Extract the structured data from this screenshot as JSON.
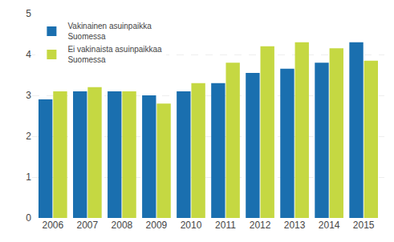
{
  "chart_data": {
    "type": "bar",
    "categories": [
      "2006",
      "2007",
      "2008",
      "2009",
      "2010",
      "2011",
      "2012",
      "2013",
      "2014",
      "2015"
    ],
    "series": [
      {
        "name": "Vakinainen asuinpaikka\nSuomessa",
        "color": "#1a6faf",
        "values": [
          2.9,
          3.1,
          3.1,
          3.0,
          3.1,
          3.3,
          3.55,
          3.65,
          3.8,
          4.3
        ]
      },
      {
        "name": "Ei vakinaista asuinpaikkaa\nSuomessa",
        "color": "#c5d842",
        "values": [
          3.1,
          3.2,
          3.1,
          2.8,
          3.3,
          3.8,
          4.2,
          4.3,
          4.15,
          3.85
        ]
      }
    ],
    "ylim": [
      0,
      5
    ],
    "yticks": [
      0,
      1,
      2,
      3,
      4,
      5
    ],
    "grid": true,
    "legend": "upper left"
  }
}
